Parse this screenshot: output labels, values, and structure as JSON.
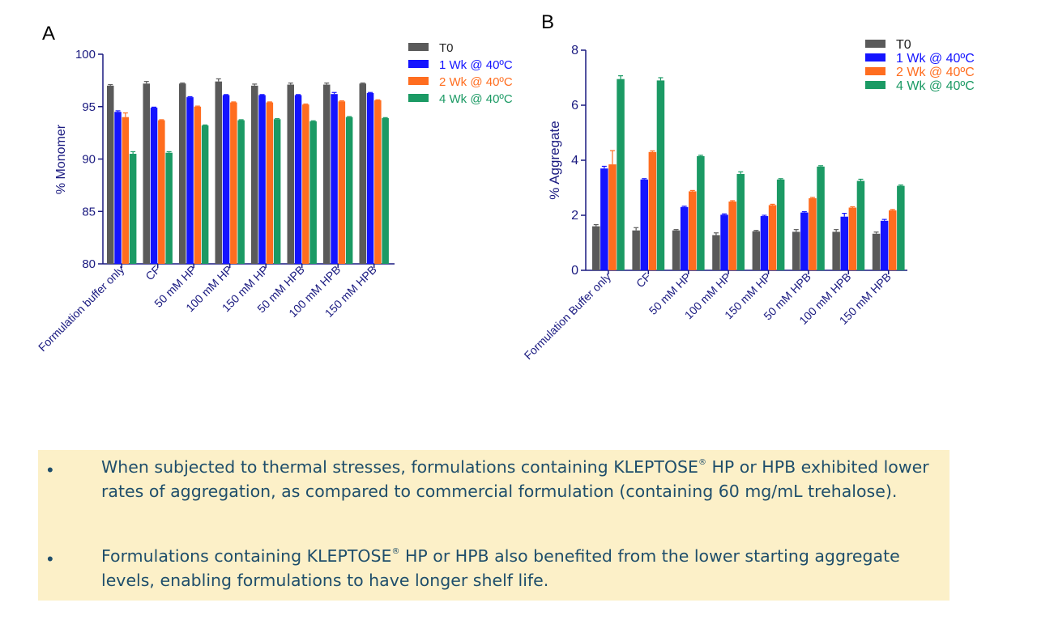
{
  "panels": {
    "a_letter": "A",
    "b_letter": "B"
  },
  "colors": {
    "T0": "#5a5a5a",
    "W1": "#1414ff",
    "W2": "#ff6d1f",
    "W4": "#1b9a64",
    "axis": "#1a1a80"
  },
  "chart_data": [
    {
      "id": "A",
      "type": "bar",
      "ylabel": "% Monomer",
      "ylim": [
        80,
        100
      ],
      "yticks": [
        80,
        85,
        90,
        95,
        100
      ],
      "categories": [
        "Formulation buffer only",
        "CF",
        "50 mM HP",
        "100 mM HP",
        "150 mM HP",
        "50 mM HPB",
        "100 mM HPB",
        "150 mM HPB"
      ],
      "series": [
        {
          "name": "T0",
          "values": [
            97.0,
            97.2,
            97.2,
            97.4,
            97.0,
            97.1,
            97.1,
            97.2
          ],
          "errors": [
            0.1,
            0.2,
            0.05,
            0.25,
            0.15,
            0.15,
            0.15,
            0.05
          ]
        },
        {
          "name": "1 Wk @ 40ºC",
          "values": [
            94.5,
            94.9,
            95.9,
            96.1,
            96.1,
            96.1,
            96.2,
            96.3
          ],
          "errors": [
            0.1,
            0.05,
            0.05,
            0.05,
            0.05,
            0.05,
            0.15,
            0.05
          ]
        },
        {
          "name": "2 Wk @ 40ºC",
          "values": [
            94.0,
            93.7,
            95.0,
            95.4,
            95.4,
            95.2,
            95.5,
            95.6
          ],
          "errors": [
            0.4,
            0.05,
            0.05,
            0.05,
            0.05,
            0.05,
            0.05,
            0.05
          ]
        },
        {
          "name": "4 Wk @ 40ºC",
          "values": [
            90.5,
            90.6,
            93.2,
            93.7,
            93.8,
            93.6,
            94.0,
            93.9
          ],
          "errors": [
            0.2,
            0.1,
            0.05,
            0.05,
            0.05,
            0.05,
            0.05,
            0.05
          ]
        }
      ]
    },
    {
      "id": "B",
      "type": "bar",
      "ylabel": "% Aggregate",
      "ylim": [
        0,
        8
      ],
      "yticks": [
        0,
        2,
        4,
        6,
        8
      ],
      "categories": [
        "Formulation Buffer only",
        "CF",
        "50 mM HP",
        "100 mM HP",
        "150 mM HP",
        "50 mM HPB",
        "100 mM HPB",
        "150 mM HPB"
      ],
      "series": [
        {
          "name": "T0",
          "values": [
            1.6,
            1.45,
            1.45,
            1.28,
            1.42,
            1.4,
            1.4,
            1.33
          ],
          "errors": [
            0.06,
            0.1,
            0.03,
            0.08,
            0.03,
            0.08,
            0.08,
            0.06
          ]
        },
        {
          "name": "1 Wk @ 40ºC",
          "values": [
            3.7,
            3.3,
            2.3,
            2.02,
            1.97,
            2.1,
            1.95,
            1.8
          ],
          "errors": [
            0.08,
            0.03,
            0.03,
            0.03,
            0.03,
            0.03,
            0.12,
            0.05
          ]
        },
        {
          "name": "2 Wk @ 40ºC",
          "values": [
            3.85,
            4.3,
            2.87,
            2.5,
            2.37,
            2.62,
            2.28,
            2.18
          ],
          "errors": [
            0.5,
            0.04,
            0.03,
            0.03,
            0.03,
            0.03,
            0.03,
            0.03
          ]
        },
        {
          "name": "4 Wk @ 40ºC",
          "values": [
            6.95,
            6.9,
            4.15,
            3.5,
            3.3,
            3.77,
            3.25,
            3.07
          ],
          "errors": [
            0.12,
            0.1,
            0.03,
            0.08,
            0.03,
            0.03,
            0.06,
            0.03
          ]
        }
      ]
    }
  ],
  "callout": {
    "bullet_symbol": "•",
    "bullet1": {
      "part1": "When subjected to thermal stresses, formulations containing KLEPTOSE",
      "reg": "®",
      "part2": " HP or HPB exhibited lower rates of aggregation, as compared to commercial formulation (containing 60 mg/mL trehalose)."
    },
    "bullet2": {
      "part1": "Formulations containing KLEPTOSE",
      "reg": "®",
      "part2": " HP or HPB also benefited from the lower starting aggregate levels, enabling formulations to have longer shelf life."
    }
  }
}
